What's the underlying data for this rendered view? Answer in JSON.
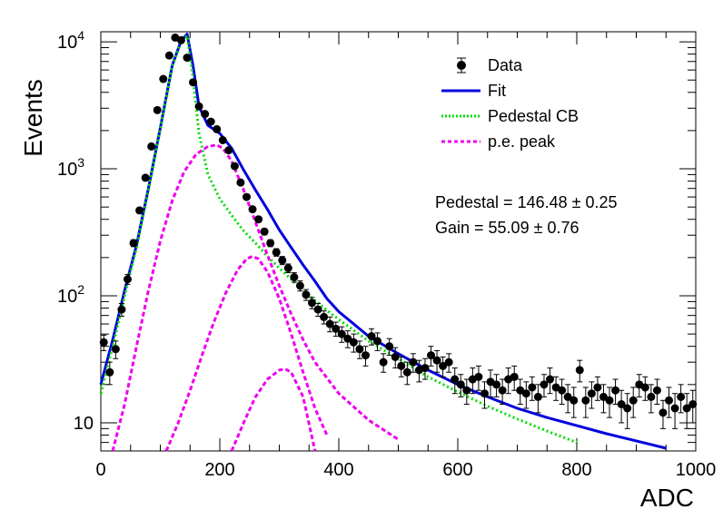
{
  "chart_data": {
    "type": "scatter",
    "title": "",
    "xlabel": "ADC",
    "ylabel": "Events",
    "xlim": [
      0,
      1000
    ],
    "ylim": [
      6,
      12000
    ],
    "yscale": "log",
    "x_ticks": [
      "0",
      "200",
      "400",
      "600",
      "800",
      "1000"
    ],
    "y_ticks": [
      {
        "value": 10,
        "base": "10",
        "exp": ""
      },
      {
        "value": 100,
        "base": "10",
        "exp": "2"
      },
      {
        "value": 1000,
        "base": "10",
        "exp": "3"
      },
      {
        "value": 10000,
        "base": "10",
        "exp": "4"
      }
    ],
    "legend_position": "top-right",
    "legend": [
      {
        "label": "Data",
        "style": "marker",
        "color": "#000000"
      },
      {
        "label": "Fit",
        "style": "solid",
        "color": "#0000dd"
      },
      {
        "label": "Pedestal CB",
        "style": "dotted",
        "color": "#00dd00"
      },
      {
        "label": "p.e. peak",
        "style": "dashed",
        "color": "#ee00ee"
      }
    ],
    "annotations": {
      "pedestal": "Pedestal = 146.48 ± 0.25",
      "gain": "Gain = 55.09 ± 0.76"
    },
    "series": [
      {
        "name": "Data",
        "kind": "points",
        "color": "#000000",
        "x": [
          5,
          15,
          25,
          35,
          45,
          55,
          65,
          75,
          85,
          95,
          105,
          115,
          125,
          135,
          145,
          155,
          165,
          175,
          185,
          195,
          205,
          215,
          225,
          235,
          245,
          255,
          265,
          275,
          285,
          295,
          305,
          315,
          325,
          335,
          345,
          355,
          365,
          375,
          385,
          395,
          405,
          415,
          425,
          435,
          445,
          455,
          465,
          475,
          485,
          495,
          505,
          515,
          525,
          535,
          545,
          555,
          565,
          575,
          585,
          595,
          605,
          615,
          625,
          635,
          645,
          655,
          665,
          675,
          685,
          695,
          705,
          715,
          725,
          735,
          745,
          755,
          765,
          775,
          785,
          795,
          805,
          815,
          825,
          835,
          845,
          855,
          865,
          875,
          885,
          895,
          905,
          915,
          925,
          935,
          945,
          955,
          965,
          975,
          985,
          995
        ],
        "y": [
          43,
          25,
          38,
          78,
          135,
          260,
          470,
          850,
          1500,
          2900,
          5100,
          7800,
          10800,
          10300,
          7500,
          4800,
          3100,
          2700,
          2350,
          2050,
          1680,
          1400,
          1050,
          780,
          600,
          480,
          400,
          320,
          260,
          220,
          190,
          165,
          140,
          120,
          102,
          88,
          78,
          68,
          60,
          55,
          50,
          46,
          43,
          38,
          34,
          48,
          44,
          30,
          40,
          33,
          28,
          25,
          30,
          26,
          27,
          34,
          31,
          28,
          30,
          22,
          20,
          18,
          22,
          23,
          17,
          21,
          20,
          18,
          22,
          23,
          18,
          17,
          19,
          16,
          20,
          22,
          19,
          18,
          16,
          15,
          26,
          15,
          17,
          19,
          16,
          15,
          18,
          14,
          13,
          15,
          20,
          19,
          16,
          18,
          12,
          15,
          13,
          16,
          13,
          14
        ],
        "yerr": [
          6,
          5,
          6,
          9,
          12,
          16,
          22,
          29,
          39,
          54,
          71,
          88,
          104,
          101,
          87,
          69,
          56,
          52,
          48,
          45,
          41,
          37,
          32,
          28,
          24,
          22,
          20,
          18,
          16,
          15,
          14,
          13,
          12,
          11,
          10,
          9,
          9,
          8,
          8,
          7,
          7,
          7,
          7,
          6,
          6,
          7,
          7,
          5,
          6,
          6,
          5,
          5,
          5,
          5,
          5,
          6,
          6,
          5,
          5,
          5,
          4,
          4,
          5,
          5,
          4,
          5,
          4,
          4,
          5,
          5,
          4,
          4,
          4,
          4,
          4,
          5,
          4,
          4,
          4,
          4,
          5,
          4,
          4,
          4,
          4,
          4,
          4,
          4,
          4,
          4,
          4,
          4,
          4,
          4,
          3,
          4,
          4,
          4,
          4,
          4
        ]
      },
      {
        "name": "Fit",
        "kind": "line",
        "dash": "solid",
        "color": "#0000dd",
        "x": [
          0,
          20,
          40,
          60,
          80,
          100,
          120,
          135,
          145,
          155,
          165,
          180,
          200,
          220,
          240,
          260,
          280,
          300,
          320,
          340,
          360,
          380,
          400,
          450,
          500,
          550,
          600,
          650,
          700,
          750,
          800,
          850,
          900,
          950,
          1000
        ],
        "y": [
          20,
          45,
          110,
          250,
          700,
          2100,
          6500,
          10200,
          11500,
          6500,
          3100,
          2200,
          1900,
          1450,
          980,
          680,
          480,
          330,
          240,
          175,
          130,
          95,
          75,
          48,
          35,
          26,
          20,
          16,
          13,
          11,
          9.5,
          8.2,
          7.2,
          6.3,
          5.5
        ]
      },
      {
        "name": "Pedestal CB",
        "kind": "line",
        "dash": "dotted",
        "color": "#00dd00",
        "x": [
          0,
          20,
          40,
          60,
          80,
          100,
          120,
          135,
          145,
          155,
          165,
          180,
          200,
          220,
          240,
          260,
          280,
          300,
          320,
          340,
          360,
          380,
          400,
          450,
          500,
          550,
          600,
          650,
          700,
          750,
          800,
          850
        ],
        "y": [
          17,
          40,
          100,
          240,
          680,
          2050,
          6400,
          10000,
          11200,
          5200,
          1900,
          900,
          580,
          430,
          325,
          260,
          205,
          165,
          135,
          110,
          92,
          77,
          65,
          44,
          32,
          23,
          17.5,
          13.5,
          10.7,
          8.6,
          7,
          5.9
        ]
      },
      {
        "name": "p.e. peak 1",
        "kind": "line",
        "dash": "dashed",
        "color": "#ee00ee",
        "x": [
          20,
          40,
          60,
          80,
          100,
          120,
          140,
          160,
          180,
          195,
          205,
          220,
          240,
          260,
          280,
          300,
          320,
          340,
          360,
          400,
          450,
          500,
          550
        ],
        "y": [
          6,
          14,
          40,
          110,
          270,
          560,
          950,
          1300,
          1500,
          1540,
          1450,
          1150,
          680,
          380,
          210,
          120,
          72,
          45,
          30,
          17,
          10.5,
          7.4,
          5.9
        ]
      },
      {
        "name": "p.e. peak 2",
        "kind": "line",
        "dash": "dashed",
        "color": "#ee00ee",
        "x": [
          110,
          130,
          150,
          170,
          190,
          210,
          230,
          245,
          255,
          265,
          280,
          300,
          320,
          340,
          360,
          380,
          400
        ],
        "y": [
          6,
          10,
          18,
          34,
          62,
          105,
          160,
          195,
          205,
          195,
          155,
          95,
          50,
          25,
          13,
          8,
          5.6
        ]
      },
      {
        "name": "p.e. peak 3",
        "kind": "line",
        "dash": "dashed",
        "color": "#ee00ee",
        "x": [
          220,
          240,
          260,
          280,
          300,
          310,
          320,
          340,
          360
        ],
        "y": [
          6,
          10,
          16,
          22,
          26,
          26.5,
          25,
          16,
          6
        ]
      }
    ]
  }
}
